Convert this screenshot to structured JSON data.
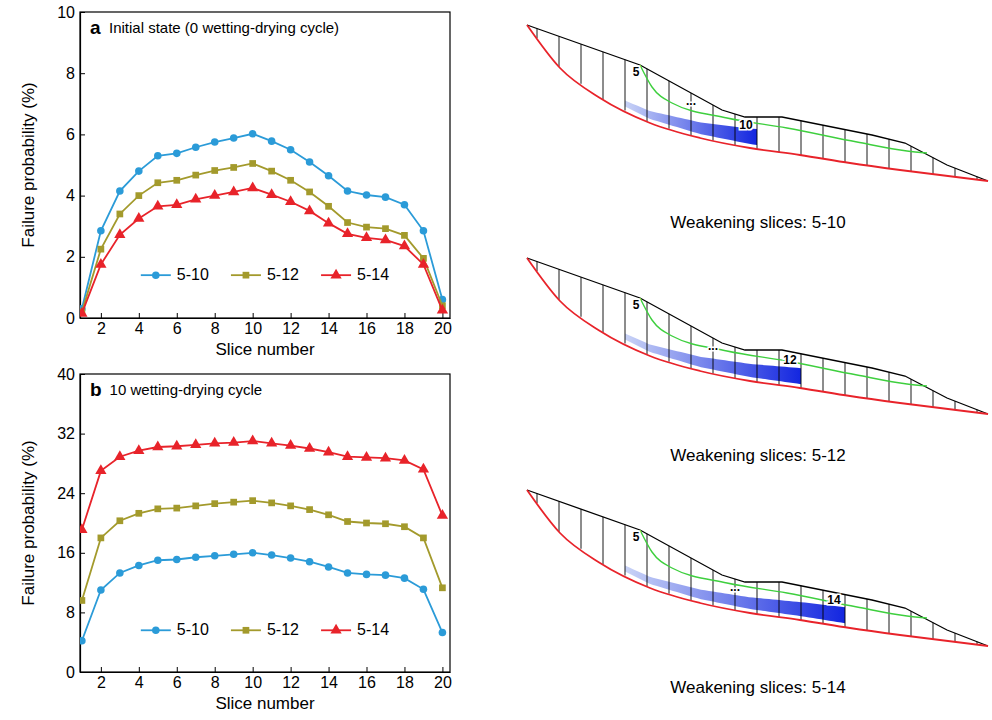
{
  "chart_data": [
    {
      "type": "line",
      "panel_label": "a",
      "title": "Initial state (0 wetting-drying cycle)",
      "x_label": "Slice number",
      "y_label": "Failure probability (%)",
      "x": [
        1,
        2,
        3,
        4,
        5,
        6,
        7,
        8,
        9,
        10,
        11,
        12,
        13,
        14,
        15,
        16,
        17,
        18,
        19,
        20
      ],
      "xlim": [
        0.9,
        20.4
      ],
      "xticks": [
        2,
        4,
        6,
        8,
        10,
        12,
        14,
        16,
        18,
        20
      ],
      "ylim": [
        0,
        10
      ],
      "yticks": [
        0,
        2,
        4,
        6,
        8,
        10
      ],
      "legend": "bottom",
      "series": [
        {
          "name": "5-10",
          "color": "#2b9bd8",
          "marker": "circle",
          "values": [
            0.3,
            2.85,
            4.15,
            4.8,
            5.3,
            5.38,
            5.58,
            5.75,
            5.88,
            6.02,
            5.78,
            5.5,
            5.1,
            4.65,
            4.15,
            4.02,
            3.95,
            3.7,
            2.85,
            0.6
          ]
        },
        {
          "name": "5-12",
          "color": "#a39a2c",
          "marker": "square",
          "values": [
            0.2,
            2.25,
            3.4,
            4.0,
            4.42,
            4.5,
            4.67,
            4.82,
            4.92,
            5.05,
            4.8,
            4.5,
            4.12,
            3.65,
            3.12,
            2.97,
            2.92,
            2.7,
            1.95,
            0.4
          ]
        },
        {
          "name": "5-14",
          "color": "#e8232a",
          "marker": "triangle",
          "values": [
            0.15,
            1.75,
            2.72,
            3.25,
            3.65,
            3.7,
            3.88,
            4.0,
            4.12,
            4.25,
            4.03,
            3.8,
            3.5,
            3.1,
            2.75,
            2.62,
            2.55,
            2.35,
            1.75,
            0.25
          ]
        }
      ]
    },
    {
      "type": "line",
      "panel_label": "b",
      "title": "10 wetting-drying cycle",
      "x_label": "Slice number",
      "y_label": "Failure probability (%)",
      "x": [
        1,
        2,
        3,
        4,
        5,
        6,
        7,
        8,
        9,
        10,
        11,
        12,
        13,
        14,
        15,
        16,
        17,
        18,
        19,
        20
      ],
      "xlim": [
        0.9,
        20.4
      ],
      "xticks": [
        2,
        4,
        6,
        8,
        10,
        12,
        14,
        16,
        18,
        20
      ],
      "ylim": [
        0,
        40
      ],
      "yticks": [
        0,
        8,
        16,
        24,
        32,
        40
      ],
      "legend": "bottom",
      "series": [
        {
          "name": "5-10",
          "color": "#2b9bd8",
          "marker": "circle",
          "values": [
            4.2,
            11.0,
            13.3,
            14.3,
            15.0,
            15.1,
            15.4,
            15.6,
            15.8,
            16.0,
            15.7,
            15.3,
            14.8,
            14.1,
            13.3,
            13.1,
            13.0,
            12.6,
            11.1,
            5.3
          ]
        },
        {
          "name": "5-12",
          "color": "#a39a2c",
          "marker": "square",
          "values": [
            9.6,
            18.0,
            20.3,
            21.3,
            21.9,
            22.0,
            22.3,
            22.6,
            22.8,
            23.0,
            22.7,
            22.3,
            21.8,
            21.1,
            20.2,
            20.0,
            19.9,
            19.5,
            18.0,
            11.3
          ]
        },
        {
          "name": "5-14",
          "color": "#e8232a",
          "marker": "triangle",
          "values": [
            19.1,
            27.0,
            28.9,
            29.7,
            30.2,
            30.3,
            30.5,
            30.7,
            30.8,
            31.0,
            30.7,
            30.4,
            30.0,
            29.5,
            28.9,
            28.8,
            28.7,
            28.4,
            27.2,
            21.0
          ]
        }
      ]
    }
  ],
  "diagrams": [
    {
      "slice_labels": [
        "5",
        "...",
        "10"
      ],
      "weakening_slices": [
        5,
        10
      ],
      "caption": "Weakening slices: 5-10"
    },
    {
      "slice_labels": [
        "5",
        "...",
        "12"
      ],
      "weakening_slices": [
        5,
        12
      ],
      "caption": "Weakening slices: 5-12"
    },
    {
      "slice_labels": [
        "5",
        "...",
        "14"
      ],
      "weakening_slices": [
        5,
        14
      ],
      "caption": "Weakening slices: 5-14"
    }
  ]
}
